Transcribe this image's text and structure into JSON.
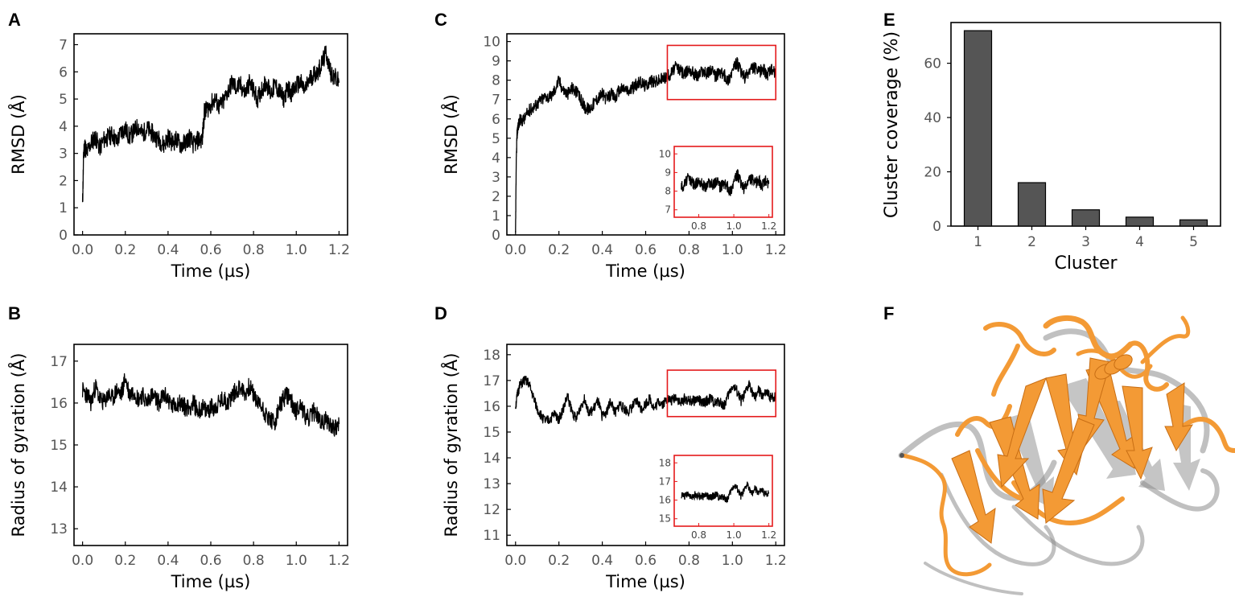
{
  "chart_data": [
    {
      "panel": "A",
      "type": "line",
      "xlabel": "Time (µs)",
      "ylabel": "RMSD (Å)",
      "xlim": [
        -0.04,
        1.24
      ],
      "ylim": [
        0,
        7.4
      ],
      "xticks": [
        "0.0",
        "0.2",
        "0.4",
        "0.6",
        "0.8",
        "1.0",
        "1.2"
      ],
      "yticks": [
        "0",
        "1",
        "2",
        "3",
        "4",
        "5",
        "6",
        "7"
      ],
      "series": [
        {
          "name": "RMSD",
          "color": "#000000",
          "x": [
            0,
            0.005,
            0.01,
            0.02,
            0.04,
            0.06,
            0.08,
            0.1,
            0.12,
            0.14,
            0.16,
            0.18,
            0.2,
            0.22,
            0.24,
            0.26,
            0.28,
            0.3,
            0.32,
            0.34,
            0.36,
            0.38,
            0.4,
            0.42,
            0.44,
            0.46,
            0.48,
            0.5,
            0.52,
            0.54,
            0.56,
            0.57,
            0.58,
            0.6,
            0.62,
            0.64,
            0.66,
            0.68,
            0.7,
            0.72,
            0.74,
            0.76,
            0.78,
            0.8,
            0.82,
            0.84,
            0.86,
            0.88,
            0.9,
            0.92,
            0.94,
            0.96,
            0.98,
            1.0,
            1.02,
            1.04,
            1.06,
            1.08,
            1.1,
            1.12,
            1.14,
            1.16,
            1.18,
            1.2
          ],
          "y": [
            1.1,
            3.0,
            3.3,
            3.0,
            3.4,
            3.6,
            3.2,
            3.5,
            3.6,
            3.7,
            3.4,
            3.8,
            3.9,
            3.6,
            3.8,
            4.0,
            3.7,
            3.9,
            3.8,
            3.6,
            3.5,
            3.3,
            3.6,
            3.4,
            3.5,
            3.3,
            3.4,
            3.6,
            3.3,
            3.5,
            3.5,
            4.5,
            4.6,
            4.8,
            5.0,
            4.7,
            4.9,
            5.3,
            5.6,
            5.4,
            5.5,
            5.2,
            5.6,
            5.3,
            5.0,
            5.4,
            5.6,
            5.2,
            5.5,
            5.3,
            5.0,
            5.4,
            5.2,
            5.5,
            5.6,
            5.3,
            5.7,
            5.9,
            6.0,
            6.3,
            6.7,
            6.0,
            5.8,
            5.6
          ]
        }
      ]
    },
    {
      "panel": "B",
      "type": "line",
      "xlabel": "Time (µs)",
      "ylabel": "Radius of gyration  (Å)",
      "xlim": [
        -0.04,
        1.24
      ],
      "ylim": [
        12.6,
        17.4
      ],
      "xticks": [
        "0.0",
        "0.2",
        "0.4",
        "0.6",
        "0.8",
        "1.0",
        "1.2"
      ],
      "yticks": [
        "13",
        "14",
        "15",
        "16",
        "17"
      ],
      "series": [
        {
          "name": "Rg",
          "color": "#000000",
          "x": [
            0,
            0.02,
            0.04,
            0.06,
            0.08,
            0.1,
            0.12,
            0.14,
            0.16,
            0.18,
            0.2,
            0.22,
            0.24,
            0.26,
            0.28,
            0.3,
            0.32,
            0.34,
            0.36,
            0.38,
            0.4,
            0.42,
            0.44,
            0.46,
            0.48,
            0.5,
            0.52,
            0.54,
            0.56,
            0.58,
            0.6,
            0.62,
            0.64,
            0.66,
            0.68,
            0.7,
            0.72,
            0.74,
            0.76,
            0.78,
            0.8,
            0.82,
            0.84,
            0.86,
            0.88,
            0.9,
            0.92,
            0.94,
            0.96,
            0.98,
            1.0,
            1.02,
            1.04,
            1.06,
            1.08,
            1.1,
            1.12,
            1.14,
            1.16,
            1.18,
            1.2
          ],
          "y": [
            16.3,
            16.2,
            16.0,
            16.4,
            16.1,
            16.0,
            16.2,
            16.1,
            16.3,
            16.2,
            16.6,
            16.2,
            16.3,
            16.1,
            16.2,
            16.0,
            16.2,
            16.1,
            16.0,
            16.2,
            16.1,
            15.9,
            16.0,
            16.0,
            15.9,
            15.9,
            16.0,
            15.8,
            15.9,
            15.8,
            15.9,
            15.9,
            16.0,
            16.1,
            16.0,
            16.2,
            16.3,
            16.4,
            16.2,
            16.4,
            16.2,
            16.0,
            15.9,
            15.7,
            15.6,
            15.5,
            15.9,
            16.1,
            16.2,
            16.0,
            15.8,
            16.0,
            15.7,
            15.6,
            15.8,
            15.7,
            15.5,
            15.6,
            15.5,
            15.4,
            15.5
          ]
        }
      ]
    },
    {
      "panel": "C",
      "type": "line",
      "xlabel": "Time (µs)",
      "ylabel": "RMSD (Å)",
      "xlim": [
        -0.04,
        1.24
      ],
      "ylim": [
        0,
        10.4
      ],
      "xticks": [
        "0.0",
        "0.2",
        "0.4",
        "0.6",
        "0.8",
        "1.0",
        "1.2"
      ],
      "yticks": [
        "0",
        "1",
        "2",
        "3",
        "4",
        "5",
        "6",
        "7",
        "8",
        "9",
        "10"
      ],
      "highlight": {
        "x": [
          0.7,
          1.2
        ],
        "y": [
          7.0,
          9.8
        ],
        "color": "#e41a1c"
      },
      "inset": {
        "xticks": [
          "0.8",
          "1.0",
          "1.2"
        ],
        "yticks": [
          "7",
          "8",
          "9",
          "10"
        ],
        "xlim": [
          0.66,
          1.22
        ],
        "ylim": [
          6.6,
          10.4
        ]
      },
      "series": [
        {
          "name": "RMSD",
          "color": "#000000",
          "x": [
            0,
            0.003,
            0.006,
            0.01,
            0.02,
            0.04,
            0.06,
            0.08,
            0.1,
            0.12,
            0.14,
            0.16,
            0.18,
            0.2,
            0.22,
            0.24,
            0.26,
            0.28,
            0.3,
            0.32,
            0.34,
            0.36,
            0.38,
            0.4,
            0.42,
            0.44,
            0.46,
            0.48,
            0.5,
            0.52,
            0.54,
            0.56,
            0.58,
            0.6,
            0.62,
            0.64,
            0.66,
            0.68,
            0.7,
            0.72,
            0.74,
            0.76,
            0.78,
            0.8,
            0.82,
            0.84,
            0.86,
            0.88,
            0.9,
            0.92,
            0.94,
            0.96,
            0.98,
            1.0,
            1.02,
            1.04,
            1.06,
            1.08,
            1.1,
            1.12,
            1.14,
            1.16,
            1.18,
            1.2
          ],
          "y": [
            0,
            3.5,
            5.0,
            5.6,
            5.9,
            6.0,
            6.4,
            6.6,
            6.8,
            7.0,
            7.2,
            7.1,
            7.5,
            8.0,
            7.5,
            7.3,
            7.6,
            7.4,
            7.0,
            6.6,
            6.5,
            6.8,
            7.1,
            7.3,
            7.0,
            7.3,
            7.1,
            7.5,
            7.6,
            7.4,
            7.6,
            7.8,
            7.9,
            7.7,
            8.0,
            7.9,
            8.0,
            8.1,
            8.2,
            8.4,
            8.7,
            8.5,
            8.3,
            8.6,
            8.4,
            8.2,
            8.5,
            8.3,
            8.6,
            8.2,
            8.4,
            8.3,
            8.0,
            8.5,
            8.9,
            8.4,
            8.1,
            8.5,
            8.7,
            8.4,
            8.6,
            8.3,
            8.5,
            8.4
          ]
        }
      ]
    },
    {
      "panel": "D",
      "type": "line",
      "xlabel": "Time (µs)",
      "ylabel": "Radius of gyration  (Å)",
      "xlim": [
        -0.04,
        1.24
      ],
      "ylim": [
        10.6,
        18.4
      ],
      "xticks": [
        "0.0",
        "0.2",
        "0.4",
        "0.6",
        "0.8",
        "1.0",
        "1.2"
      ],
      "yticks": [
        "11",
        "12",
        "13",
        "14",
        "15",
        "16",
        "17",
        "18"
      ],
      "highlight": {
        "x": [
          0.7,
          1.2
        ],
        "y": [
          15.6,
          17.4
        ],
        "color": "#e41a1c"
      },
      "inset": {
        "xticks": [
          "0.8",
          "1.0",
          "1.2"
        ],
        "yticks": [
          "15",
          "16",
          "17",
          "18"
        ],
        "xlim": [
          0.66,
          1.22
        ],
        "ylim": [
          14.6,
          18.4
        ]
      },
      "series": [
        {
          "name": "Rg",
          "color": "#000000",
          "x": [
            0,
            0.01,
            0.02,
            0.04,
            0.06,
            0.08,
            0.1,
            0.12,
            0.14,
            0.16,
            0.18,
            0.2,
            0.22,
            0.24,
            0.26,
            0.28,
            0.3,
            0.32,
            0.34,
            0.36,
            0.38,
            0.4,
            0.42,
            0.44,
            0.46,
            0.48,
            0.5,
            0.52,
            0.54,
            0.56,
            0.58,
            0.6,
            0.62,
            0.64,
            0.66,
            0.68,
            0.7,
            0.72,
            0.74,
            0.76,
            0.78,
            0.8,
            0.82,
            0.84,
            0.86,
            0.88,
            0.9,
            0.92,
            0.94,
            0.96,
            0.98,
            1.0,
            1.02,
            1.04,
            1.06,
            1.08,
            1.1,
            1.12,
            1.14,
            1.16,
            1.18,
            1.2
          ],
          "y": [
            16.0,
            16.5,
            16.8,
            17.0,
            16.9,
            16.4,
            15.9,
            15.6,
            15.4,
            15.5,
            15.7,
            15.5,
            15.9,
            16.4,
            15.8,
            15.5,
            16.0,
            16.3,
            15.7,
            15.9,
            16.2,
            15.6,
            15.8,
            16.2,
            15.7,
            16.1,
            15.9,
            15.8,
            16.0,
            16.2,
            15.9,
            16.1,
            16.3,
            15.9,
            16.2,
            16.1,
            16.3,
            16.2,
            16.4,
            16.1,
            16.3,
            16.2,
            16.2,
            16.3,
            16.1,
            16.2,
            16.3,
            16.1,
            16.2,
            16.0,
            16.4,
            16.8,
            16.6,
            16.2,
            16.5,
            16.9,
            16.3,
            16.6,
            16.4,
            16.5,
            16.3,
            16.4
          ]
        }
      ]
    },
    {
      "panel": "E",
      "type": "bar",
      "xlabel": "Cluster",
      "ylabel": "Cluster coverage (%)",
      "categories": [
        "1",
        "2",
        "3",
        "4",
        "5"
      ],
      "values": [
        72,
        16,
        6,
        3.3,
        2.3
      ],
      "ylim": [
        0,
        75
      ],
      "yticks": [
        "0",
        "20",
        "40",
        "60"
      ],
      "bar_color": "#555555"
    }
  ],
  "panel_labels": [
    "A",
    "B",
    "C",
    "D",
    "E",
    "F"
  ],
  "structure": {
    "description_colors": {
      "primary": "#f39a35",
      "secondary": "#8c8c8c"
    }
  }
}
